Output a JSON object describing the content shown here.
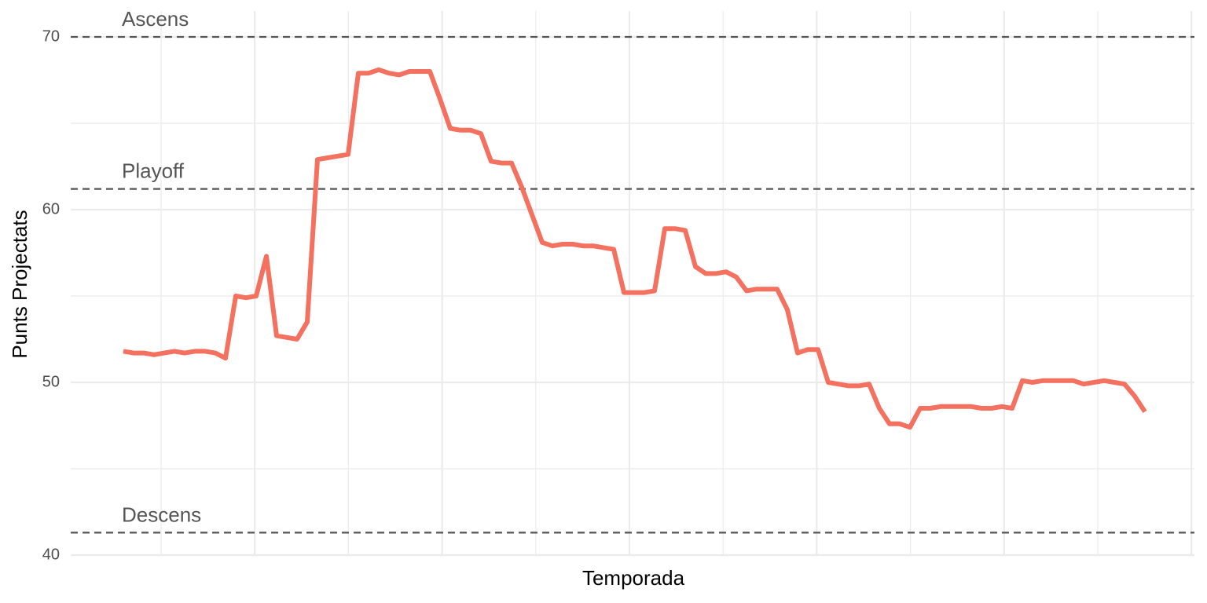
{
  "chart_data": {
    "type": "line",
    "x_label": "Temporada",
    "y_label": "Punts Projectats",
    "series": [
      {
        "name": null,
        "color": "#f4705f",
        "values": [
          51.8,
          51.7,
          51.7,
          51.6,
          51.7,
          51.8,
          51.7,
          51.8,
          51.8,
          51.7,
          51.4,
          55.0,
          54.9,
          55.0,
          57.3,
          52.7,
          52.6,
          52.5,
          53.5,
          62.9,
          63.0,
          63.1,
          63.2,
          67.9,
          67.9,
          68.1,
          67.9,
          67.8,
          68.0,
          68.0,
          68.0,
          66.4,
          64.7,
          64.6,
          64.6,
          64.4,
          62.8,
          62.7,
          62.7,
          61.3,
          59.7,
          58.1,
          57.9,
          58.0,
          58.0,
          57.9,
          57.9,
          57.8,
          57.7,
          55.2,
          55.2,
          55.2,
          55.3,
          58.9,
          58.9,
          58.8,
          56.7,
          56.3,
          56.3,
          56.4,
          56.1,
          55.3,
          55.4,
          55.4,
          55.4,
          54.2,
          51.7,
          51.9,
          51.9,
          50.0,
          49.9,
          49.8,
          49.8,
          49.9,
          48.5,
          47.6,
          47.6,
          47.4,
          48.5,
          48.5,
          48.6,
          48.6,
          48.6,
          48.6,
          48.5,
          48.5,
          48.6,
          48.5,
          50.1,
          50.0,
          50.1,
          50.1,
          50.1,
          50.1,
          49.9,
          50.0,
          50.1,
          50.0,
          49.9,
          49.2,
          48.3
        ]
      }
    ],
    "reference_lines": [
      {
        "label": "Ascens",
        "value": 70
      },
      {
        "label": "Playoff",
        "value": 61.2
      },
      {
        "label": "Descens",
        "value": 41.3
      }
    ],
    "ylim": [
      40,
      71.5
    ],
    "yticks": [
      40,
      50,
      60,
      70
    ],
    "grid": true
  }
}
